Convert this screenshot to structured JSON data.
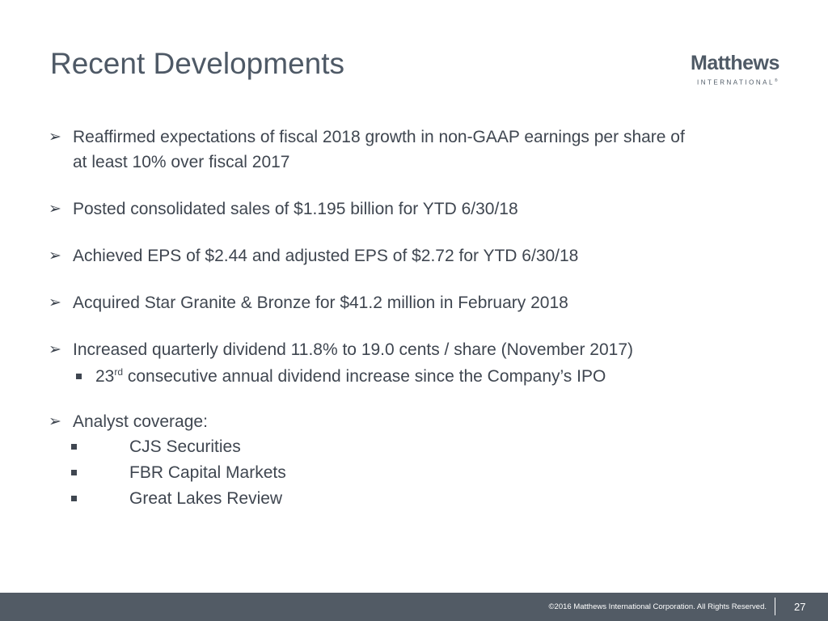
{
  "slide": {
    "title": "Recent Developments"
  },
  "logo": {
    "name": "Matthews",
    "sub": "INTERNATIONAL",
    "mark": "®"
  },
  "bullets": [
    {
      "line1": "Reaffirmed expectations of fiscal 2018 growth in non-GAAP earnings per share of",
      "line2": "at least 10% over fiscal 2017"
    },
    {
      "text": "Posted consolidated sales of $1.195 billion for YTD 6/30/18"
    },
    {
      "text": "Achieved EPS of $2.44 and adjusted EPS of $2.72 for YTD 6/30/18"
    },
    {
      "text": "Acquired Star Granite & Bronze for $41.2 million in February 2018"
    },
    {
      "text": "Increased quarterly dividend 11.8% to 19.0 cents / share (November 2017)",
      "sub": {
        "num": "23",
        "sup": "rd",
        "rest": " consecutive annual dividend increase since the Company’s IPO"
      }
    },
    {
      "text": "Analyst coverage:",
      "items": [
        "CJS Securities",
        "FBR Capital Markets",
        "Great Lakes Review"
      ]
    }
  ],
  "icons": {
    "bullet": "arrow-bullet-icon",
    "sub_bullet": "square-bullet-icon"
  },
  "colors": {
    "title": "#4e5966",
    "text": "#3f4650",
    "footer_bg": "#525b65"
  },
  "footer": {
    "copyright": "©2016 Matthews International Corporation. All Rights Reserved.",
    "page": "27"
  }
}
